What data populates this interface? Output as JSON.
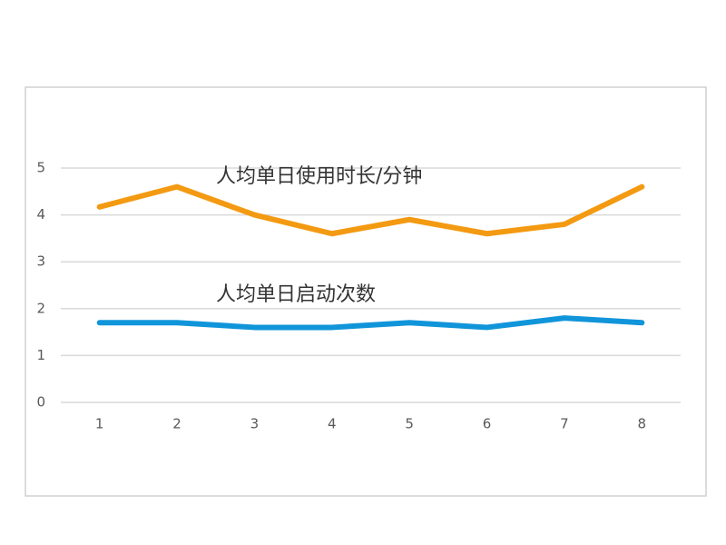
{
  "chart_data": {
    "type": "line",
    "categories": [
      "1",
      "2",
      "3",
      "4",
      "5",
      "6",
      "7",
      "8"
    ],
    "series": [
      {
        "name": "人均单日使用时长/分钟",
        "color": "#f39a12",
        "values": [
          4.17,
          4.6,
          4.0,
          3.6,
          3.9,
          3.6,
          3.8,
          4.6
        ]
      },
      {
        "name": "人均单日启动次数",
        "color": "#1195da",
        "values": [
          1.7,
          1.7,
          1.6,
          1.6,
          1.7,
          1.6,
          1.8,
          1.7
        ]
      }
    ],
    "ylim": [
      0,
      5
    ],
    "yticks": [
      0,
      1,
      2,
      3,
      4,
      5
    ],
    "grid": true
  }
}
